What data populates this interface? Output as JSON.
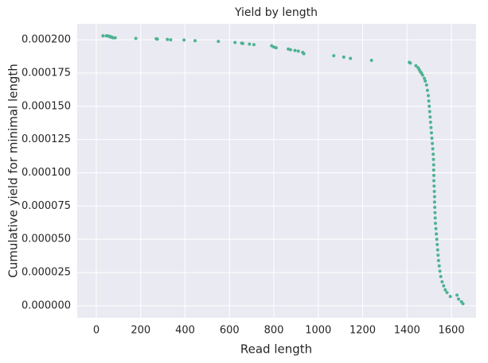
{
  "chart_data": {
    "type": "scatter",
    "title": "Yield by length",
    "x_label": "Read length",
    "y_label": "Cumulative yield for minimal length",
    "color": "#4cb391",
    "grid": true,
    "xlim": [
      -86,
      1711
    ],
    "ylim": [
      -9e-06,
      0.000212
    ],
    "xticks": [
      0,
      200,
      400,
      600,
      800,
      1000,
      1200,
      1400,
      1600
    ],
    "yticks": [
      {
        "value": 0,
        "label": "0.000000"
      },
      {
        "value": 2.5e-05,
        "label": "0.000025"
      },
      {
        "value": 5e-05,
        "label": "0.000050"
      },
      {
        "value": 7.5e-05,
        "label": "0.000075"
      },
      {
        "value": 0.0001,
        "label": "0.000100"
      },
      {
        "value": 0.000125,
        "label": "0.000125"
      },
      {
        "value": 0.00015,
        "label": "0.000150"
      },
      {
        "value": 0.000175,
        "label": "0.000175"
      },
      {
        "value": 0.0002,
        "label": "0.000200"
      }
    ],
    "x": [
      30,
      45,
      52,
      58,
      62,
      65,
      70,
      75,
      85,
      178,
      270,
      275,
      320,
      335,
      395,
      445,
      550,
      625,
      655,
      660,
      690,
      710,
      790,
      800,
      810,
      865,
      875,
      895,
      910,
      930,
      935,
      1070,
      1115,
      1145,
      1240,
      1410,
      1415,
      1440,
      1450,
      1455,
      1460,
      1465,
      1470,
      1478,
      1482,
      1488,
      1492,
      1496,
      1498,
      1500,
      1502,
      1504,
      1506,
      1508,
      1510,
      1512,
      1514,
      1516,
      1518,
      1519,
      1520,
      1520,
      1521,
      1521,
      1522,
      1523,
      1524,
      1524,
      1525,
      1526,
      1527,
      1528,
      1530,
      1532,
      1534,
      1536,
      1538,
      1540,
      1542,
      1545,
      1548,
      1552,
      1558,
      1565,
      1572,
      1580,
      1595,
      1625,
      1632,
      1645,
      1652
    ],
    "values": [
      0.000203,
      0.000203,
      0.000203,
      0.0002025,
      0.0002025,
      0.000202,
      0.000202,
      0.0002015,
      0.0002015,
      0.000201,
      0.0002008,
      0.0002005,
      0.0002003,
      0.0002,
      0.0001998,
      0.0001993,
      0.0001988,
      0.000198,
      0.0001975,
      0.0001972,
      0.0001968,
      0.0001963,
      0.0001955,
      0.0001945,
      0.000194,
      0.000193,
      0.0001925,
      0.000192,
      0.0001915,
      0.0001905,
      0.0001895,
      0.000188,
      0.000187,
      0.000186,
      0.0001845,
      0.000183,
      0.0001825,
      0.0001805,
      0.000179,
      0.0001775,
      0.000176,
      0.000175,
      0.0001735,
      0.000171,
      0.000169,
      0.000166,
      0.000162,
      0.000158,
      0.000154,
      0.00015,
      0.000146,
      0.000142,
      0.000138,
      0.000134,
      0.00013,
      0.000126,
      0.000122,
      0.000118,
      0.000114,
      0.00011,
      0.000106,
      0.000102,
      9.8e-05,
      9.4e-05,
      9e-05,
      8.6e-05,
      8.2e-05,
      7.8e-05,
      7.4e-05,
      7e-05,
      6.6e-05,
      6.2e-05,
      5.8e-05,
      5.4e-05,
      5e-05,
      4.6e-05,
      4.2e-05,
      3.8e-05,
      3.4e-05,
      3e-05,
      2.6e-05,
      2.2e-05,
      1.8e-05,
      1.5e-05,
      1.2e-05,
      1e-05,
      7e-06,
      8e-06,
      5e-06,
      3e-06,
      1.5e-06
    ]
  }
}
